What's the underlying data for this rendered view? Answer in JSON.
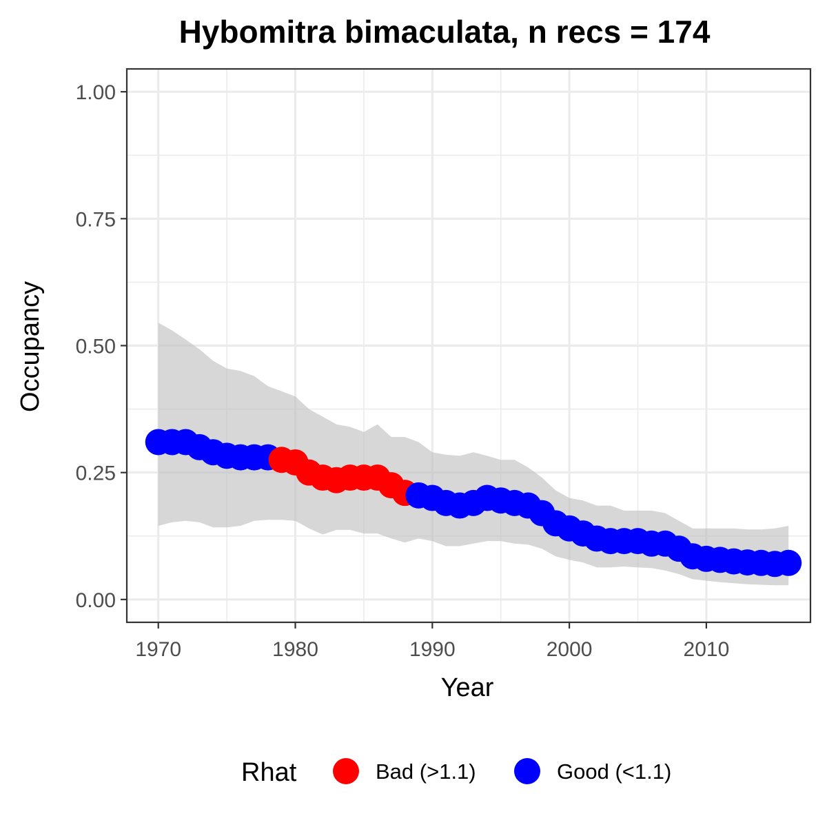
{
  "chart_data": {
    "type": "line",
    "title": "Hybomitra bimaculata, n recs = 174",
    "xlabel": "Year",
    "ylabel": "Occupancy",
    "xlim": [
      1967.7,
      2017.6
    ],
    "ylim": [
      -0.045,
      1.045
    ],
    "x_ticks": [
      1970,
      1980,
      1990,
      2000,
      2010
    ],
    "x_tick_labels": [
      "1970",
      "1980",
      "1990",
      "2000",
      "2010"
    ],
    "y_ticks": [
      0,
      0.25,
      0.5,
      0.75,
      1.0
    ],
    "y_tick_labels": [
      "0.00",
      "0.25",
      "0.50",
      "0.75",
      "1.00"
    ],
    "grid": true,
    "legend": {
      "title": "Rhat",
      "position": "bottom",
      "entries": [
        {
          "label": "Bad (>1.1)",
          "color": "#ff0000"
        },
        {
          "label": "Good (<1.1)",
          "color": "#0000ff"
        }
      ]
    },
    "colors": {
      "good": "#0000ff",
      "bad": "#ff0000",
      "ribbon": "#bebebe"
    },
    "x": [
      1970,
      1971,
      1972,
      1973,
      1974,
      1975,
      1976,
      1977,
      1978,
      1979,
      1980,
      1981,
      1982,
      1983,
      1984,
      1985,
      1986,
      1987,
      1988,
      1989,
      1990,
      1991,
      1992,
      1993,
      1994,
      1995,
      1996,
      1997,
      1998,
      1999,
      2000,
      2001,
      2002,
      2003,
      2004,
      2005,
      2006,
      2007,
      2008,
      2009,
      2010,
      2011,
      2012,
      2013,
      2014,
      2015,
      2016
    ],
    "mean": [
      0.31,
      0.31,
      0.31,
      0.3,
      0.29,
      0.283,
      0.28,
      0.28,
      0.28,
      0.275,
      0.27,
      0.25,
      0.24,
      0.235,
      0.24,
      0.24,
      0.24,
      0.225,
      0.21,
      0.205,
      0.2,
      0.19,
      0.185,
      0.19,
      0.2,
      0.195,
      0.19,
      0.185,
      0.17,
      0.15,
      0.14,
      0.13,
      0.12,
      0.115,
      0.115,
      0.115,
      0.11,
      0.11,
      0.1,
      0.085,
      0.08,
      0.078,
      0.075,
      0.073,
      0.072,
      0.07,
      0.072
    ],
    "lower": [
      0.145,
      0.152,
      0.155,
      0.152,
      0.142,
      0.142,
      0.145,
      0.155,
      0.157,
      0.157,
      0.155,
      0.14,
      0.128,
      0.137,
      0.137,
      0.13,
      0.13,
      0.12,
      0.112,
      0.12,
      0.115,
      0.105,
      0.105,
      0.11,
      0.115,
      0.115,
      0.11,
      0.108,
      0.1,
      0.085,
      0.078,
      0.073,
      0.063,
      0.063,
      0.065,
      0.063,
      0.062,
      0.057,
      0.05,
      0.04,
      0.037,
      0.034,
      0.032,
      0.03,
      0.029,
      0.028,
      0.028
    ],
    "upper": [
      0.545,
      0.53,
      0.512,
      0.493,
      0.47,
      0.455,
      0.45,
      0.44,
      0.42,
      0.41,
      0.4,
      0.375,
      0.36,
      0.345,
      0.34,
      0.33,
      0.345,
      0.32,
      0.32,
      0.31,
      0.29,
      0.285,
      0.283,
      0.29,
      0.283,
      0.275,
      0.275,
      0.26,
      0.24,
      0.215,
      0.2,
      0.195,
      0.185,
      0.185,
      0.175,
      0.175,
      0.175,
      0.17,
      0.155,
      0.14,
      0.14,
      0.14,
      0.14,
      0.138,
      0.138,
      0.14,
      0.145
    ],
    "rhat": [
      "Good",
      "Good",
      "Good",
      "Good",
      "Good",
      "Good",
      "Good",
      "Good",
      "Good",
      "Bad",
      "Bad",
      "Bad",
      "Bad",
      "Bad",
      "Bad",
      "Bad",
      "Bad",
      "Bad",
      "Bad",
      "Good",
      "Good",
      "Good",
      "Good",
      "Good",
      "Good",
      "Good",
      "Good",
      "Good",
      "Good",
      "Good",
      "Good",
      "Good",
      "Good",
      "Good",
      "Good",
      "Good",
      "Good",
      "Good",
      "Good",
      "Good",
      "Good",
      "Good",
      "Good",
      "Good",
      "Good",
      "Good",
      "Good"
    ]
  }
}
